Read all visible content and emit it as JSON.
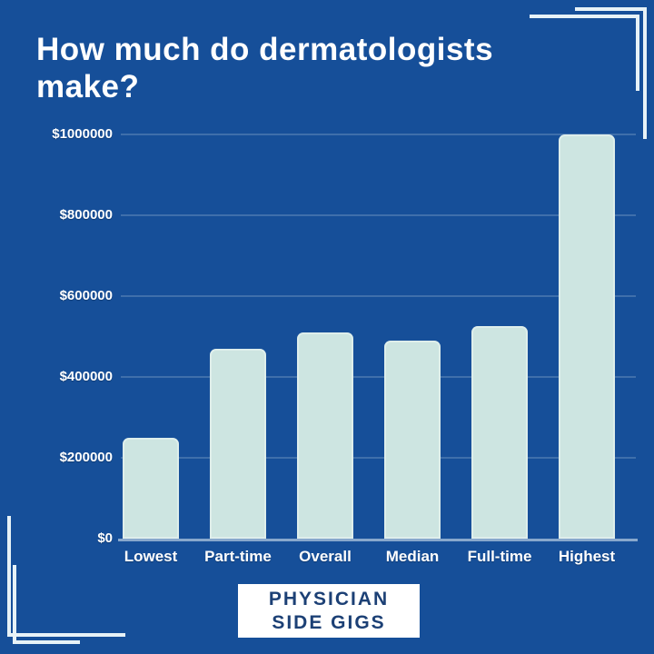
{
  "page": {
    "background_color": "#164f99",
    "accent_line_color": "#e7f2f7"
  },
  "header": {
    "title_line1": "How much do dermatologists",
    "title_line2": "make?",
    "title_full": "How much do dermatologists make?"
  },
  "chart_data": {
    "type": "bar",
    "title": "How much do dermatologists make?",
    "categories": [
      "Lowest",
      "Part-time",
      "Overall",
      "Median",
      "Full-time",
      "Highest"
    ],
    "values": [
      250000,
      470000,
      510000,
      490000,
      525000,
      1000000
    ],
    "y_ticks": [
      {
        "value": 0,
        "label": "$0"
      },
      {
        "value": 200000,
        "label": "$200000"
      },
      {
        "value": 400000,
        "label": "$400000"
      },
      {
        "value": 600000,
        "label": "$600000"
      },
      {
        "value": 800000,
        "label": "$800000"
      },
      {
        "value": 1000000,
        "label": "$1000000"
      }
    ],
    "ylim": [
      0,
      1000000
    ],
    "xlabel": "",
    "ylabel": "",
    "grid": true,
    "legend": false,
    "bar_color": "#cde5e1"
  },
  "footer": {
    "badge_line1": "PHYSICIAN",
    "badge_line2": "SIDE GIGS",
    "badge_background": "#ffffff",
    "badge_text_color": "#1c4075"
  }
}
